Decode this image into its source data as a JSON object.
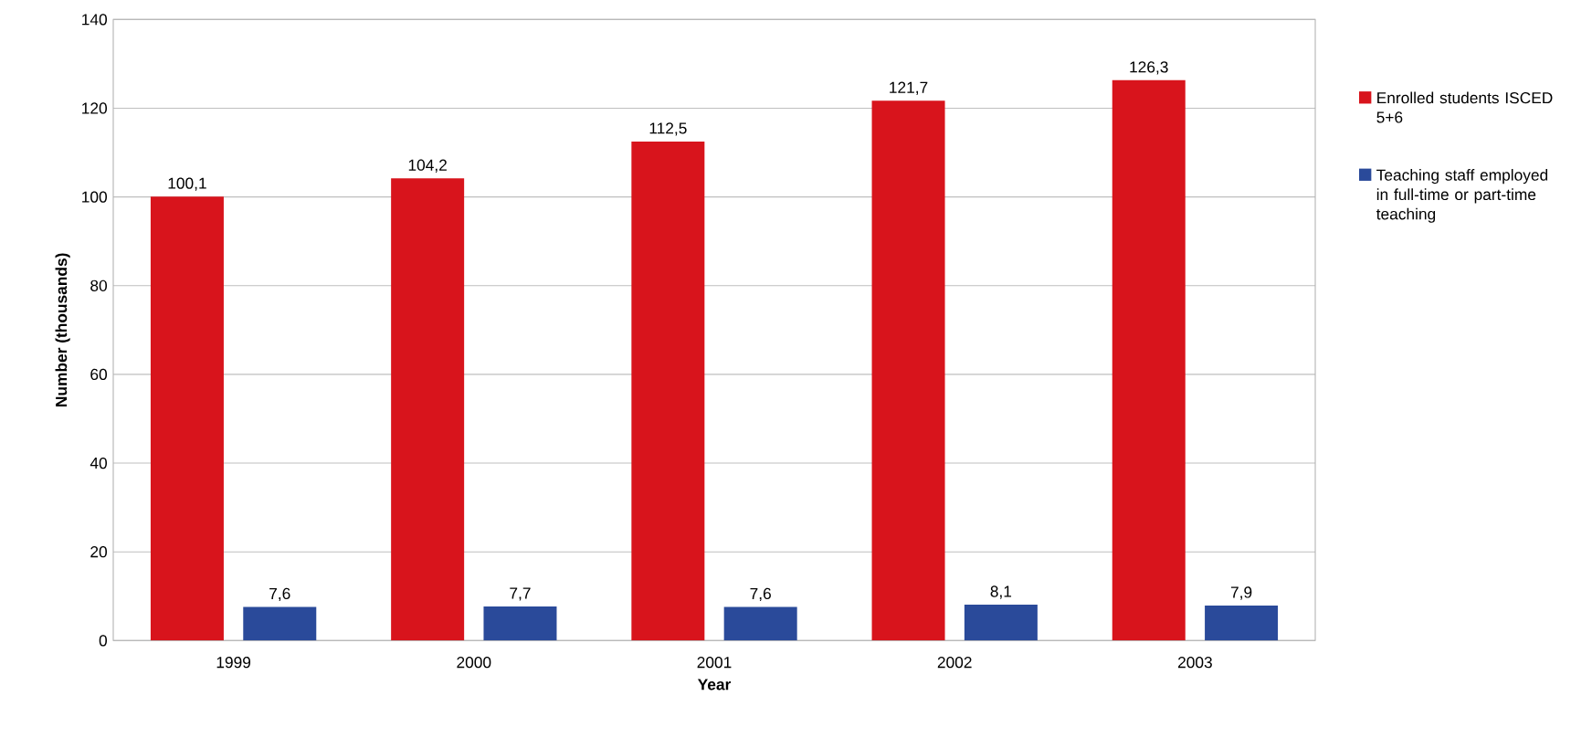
{
  "chart_data": {
    "type": "bar",
    "xlabel": "Year",
    "ylabel": "Number (thousands)",
    "categories": [
      "1999",
      "2000",
      "2001",
      "2002",
      "2003"
    ],
    "series": [
      {
        "name": "Enrolled students ISCED 5+6",
        "color": "#d8141c",
        "values": [
          100.1,
          104.2,
          112.5,
          121.7,
          126.3
        ],
        "value_labels": [
          "100,1",
          "104,2",
          "112,5",
          "121,7",
          "126,3"
        ]
      },
      {
        "name": "Teaching staff employed in full-time or part-time teaching",
        "color": "#2a4a9a",
        "values": [
          7.6,
          7.7,
          7.6,
          8.1,
          7.9
        ],
        "value_labels": [
          "7,6",
          "7,7",
          "7,6",
          "8,1",
          "7,9"
        ]
      }
    ],
    "ylim": [
      0,
      140
    ],
    "yticks": [
      0,
      20,
      40,
      60,
      80,
      100,
      120,
      140
    ],
    "grid": "y",
    "legend": "right"
  }
}
